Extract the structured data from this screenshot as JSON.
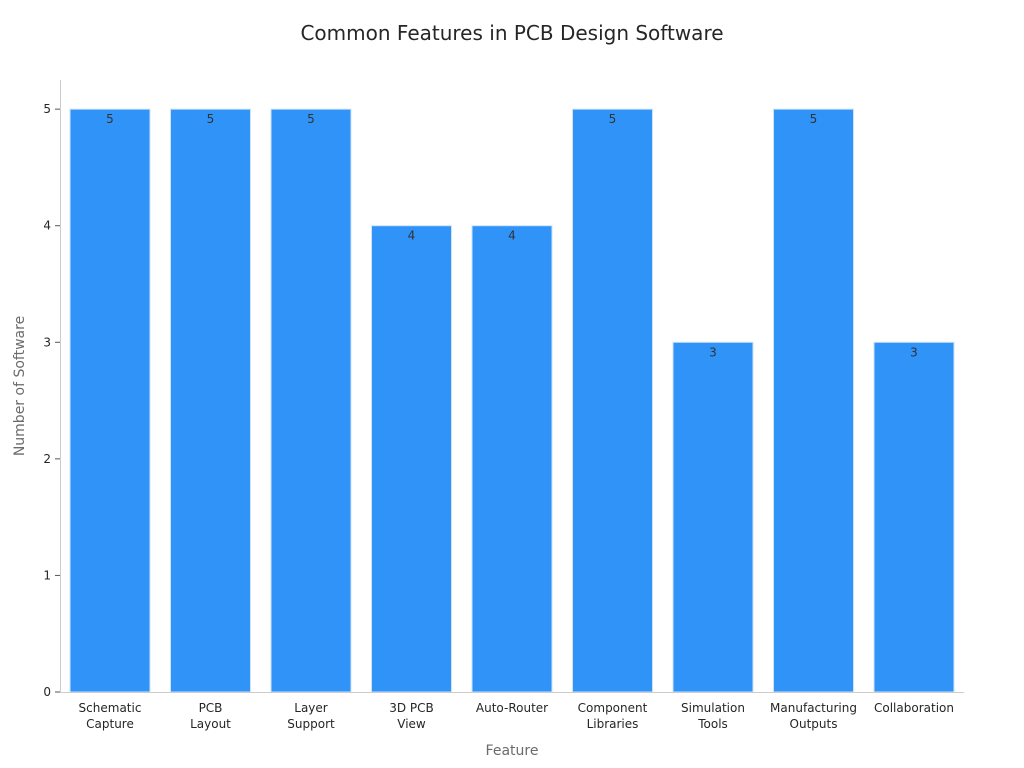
{
  "chart_data": {
    "type": "bar",
    "title": "Common Features in PCB Design Software",
    "xlabel": "Feature",
    "ylabel": "Number of Software",
    "categories": [
      [
        "Schematic",
        "Capture"
      ],
      [
        "PCB",
        "Layout"
      ],
      [
        "Layer",
        "Support"
      ],
      [
        "3D PCB",
        "View"
      ],
      [
        "Auto-Router"
      ],
      [
        "Component",
        "Libraries"
      ],
      [
        "Simulation",
        "Tools"
      ],
      [
        "Manufacturing",
        "Outputs"
      ],
      [
        "Collaboration"
      ]
    ],
    "values": [
      5,
      5,
      5,
      4,
      4,
      5,
      3,
      5,
      3
    ],
    "data_labels": [
      "5",
      "5",
      "5",
      "4",
      "4",
      "5",
      "3",
      "5",
      "3"
    ],
    "ylim": [
      0,
      5.25
    ],
    "yticks": [
      0,
      1,
      2,
      3,
      4,
      5
    ],
    "ytick_labels": [
      "0",
      "1",
      "2",
      "3",
      "4",
      "5"
    ],
    "grid": false,
    "legend": "none",
    "colors": {
      "bar_fill": "#2f93f8",
      "bar_stroke": "#cfe3f7",
      "axis": "#cccccc",
      "title": "#262626",
      "axis_title": "#6b6b6b",
      "tick_label": "#262626",
      "data_label": "#333333"
    }
  }
}
